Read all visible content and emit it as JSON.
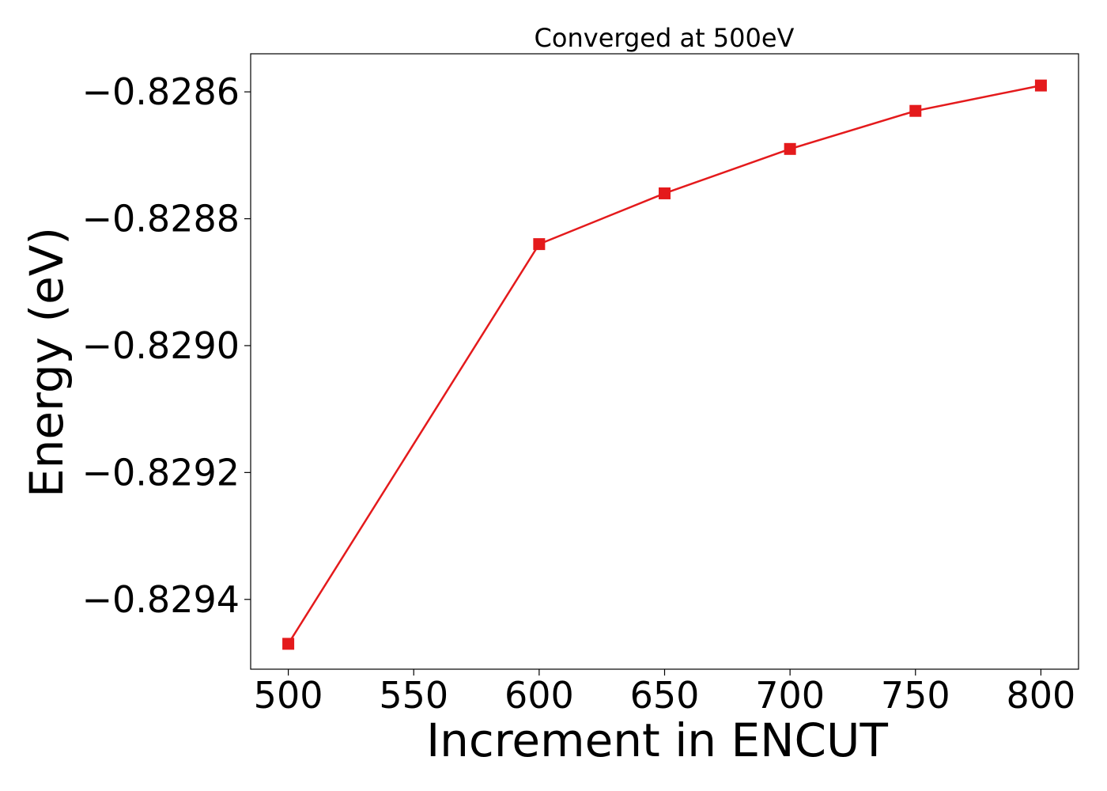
{
  "chart_data": {
    "type": "line",
    "title": "Converged at 500eV",
    "xlabel": "Increment in ENCUT",
    "ylabel": "Energy (eV)",
    "x": [
      500,
      600,
      650,
      700,
      750,
      800
    ],
    "series": [
      {
        "values": [
          -0.82947,
          -0.82884,
          -0.82876,
          -0.82869,
          -0.82863,
          -0.82859
        ],
        "color": "#e41a1c",
        "marker": "square"
      }
    ],
    "xticks": [
      500,
      550,
      600,
      650,
      700,
      750,
      800
    ],
    "xtick_labels": [
      "500",
      "550",
      "600",
      "650",
      "700",
      "750",
      "800"
    ],
    "yticks": [
      -0.8294,
      -0.8292,
      -0.829,
      -0.8288,
      -0.8286
    ],
    "ytick_labels": [
      "−0.8294",
      "−0.8292",
      "−0.8290",
      "−0.8288",
      "−0.8286"
    ],
    "xlim": [
      485,
      815
    ],
    "ylim": [
      -0.82951,
      -0.82854
    ],
    "grid": false,
    "legend": "none"
  }
}
